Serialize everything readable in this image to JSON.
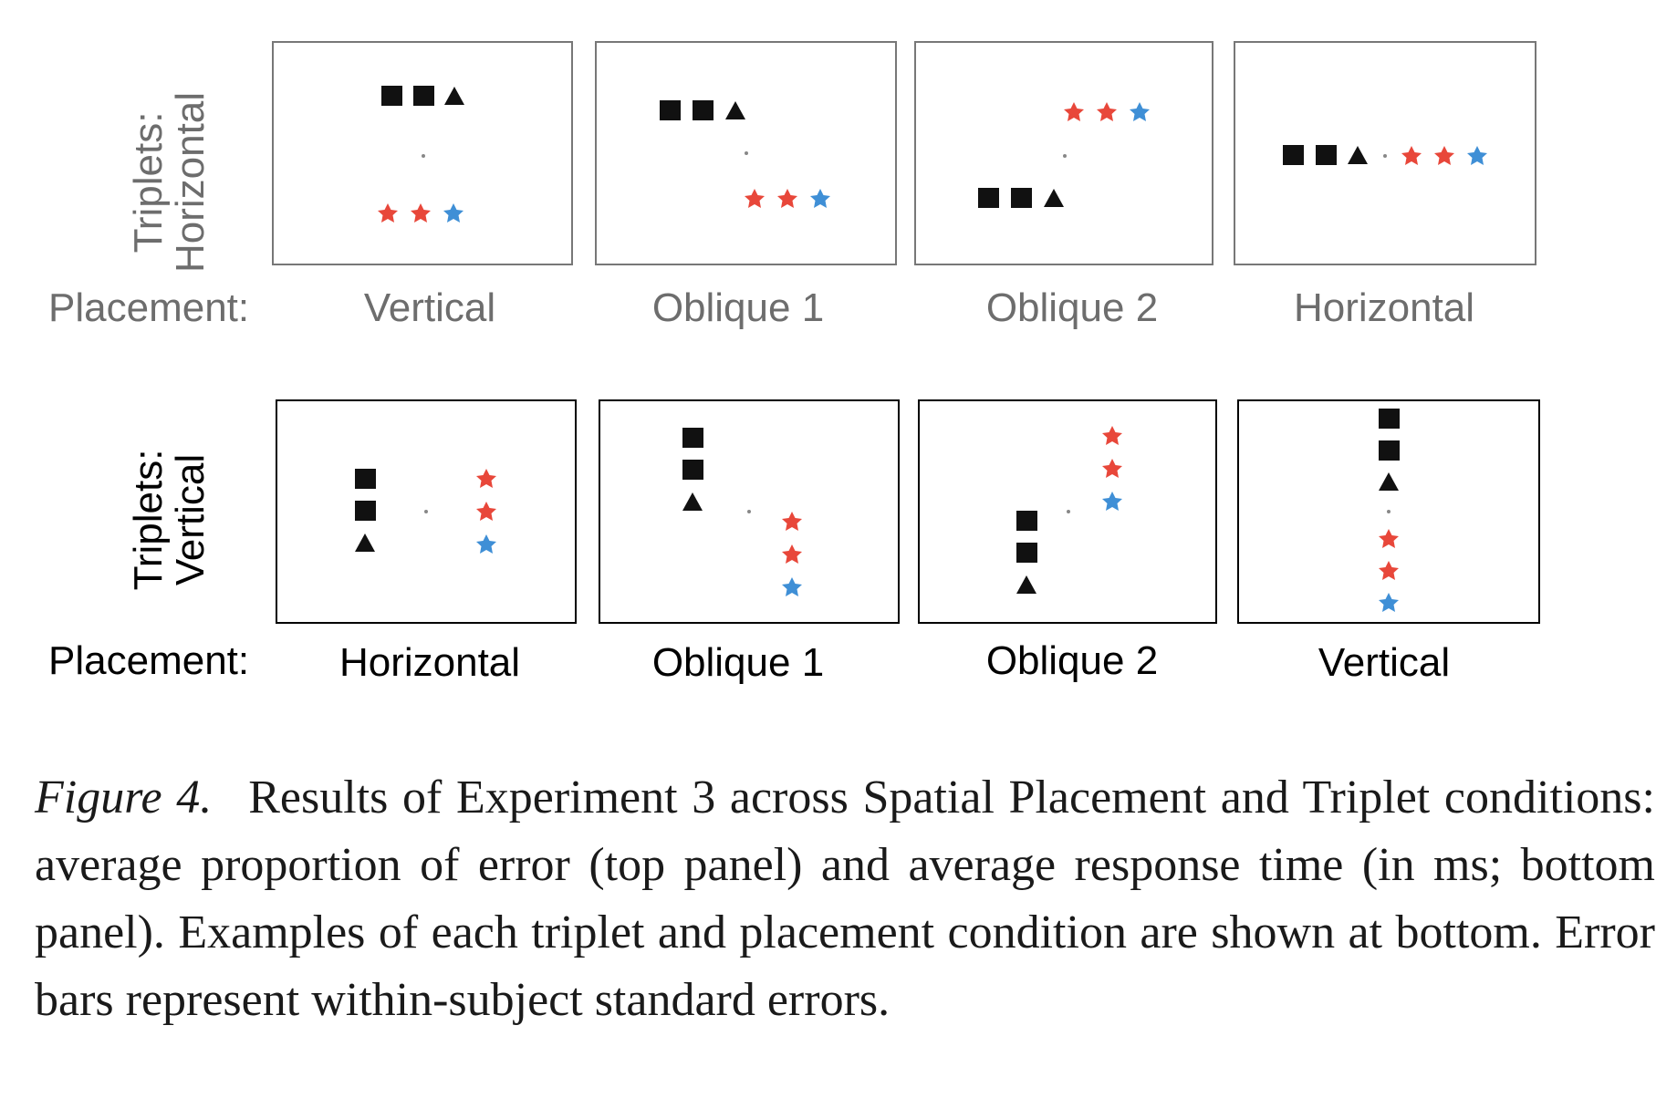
{
  "figure": {
    "top_row": {
      "row_label_line1": "Triplets:",
      "row_label_line2": "Horizontal",
      "placement_label": "Placement:",
      "conditions": [
        "Vertical",
        "Oblique 1",
        "Oblique 2",
        "Horizontal"
      ]
    },
    "bottom_row": {
      "row_label_line1": "Triplets:",
      "row_label_line2": "Vertical",
      "placement_label": "Placement:",
      "conditions": [
        "Horizontal",
        "Oblique 1",
        "Oblique 2",
        "Vertical"
      ]
    },
    "colors": {
      "square": "#111111",
      "triangle": "#111111",
      "star_red": "#e8473a",
      "star_blue": "#3f8fd6",
      "fixation": "#888888"
    }
  },
  "caption": {
    "label": "Figure 4.",
    "text": "Results of Experiment 3 across Spatial Placement and Triplet conditions: average proportion of error (top panel) and average response time (in ms; bottom panel). Examples of each triplet and placement condition are shown at bottom. Error bars represent within-subject standard errors."
  }
}
